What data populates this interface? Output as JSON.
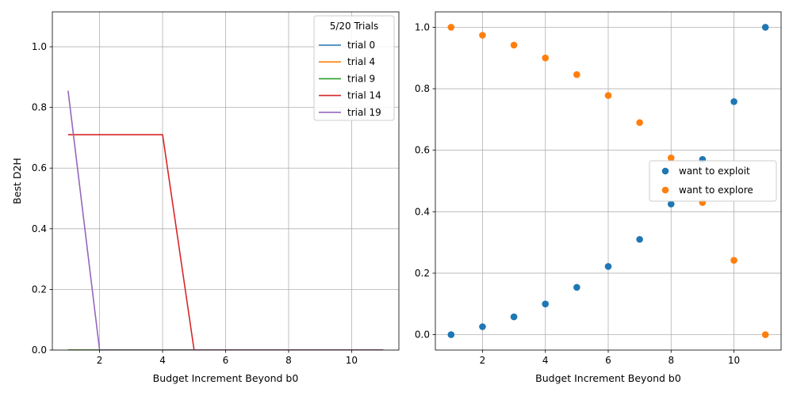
{
  "chart_data": [
    {
      "type": "line",
      "xlabel": "Budget Increment Beyond b0",
      "ylabel": "Best D2H",
      "xlim": [
        0.5,
        11.5
      ],
      "ylim": [
        0,
        1.115
      ],
      "xticks": [
        2,
        4,
        6,
        8,
        10
      ],
      "yticks": [
        0.0,
        0.2,
        0.4,
        0.6,
        0.8,
        1.0
      ],
      "grid": true,
      "legend": {
        "title": "5/20 Trials",
        "placement": "top-right"
      },
      "x": [
        1,
        2,
        3,
        4,
        5,
        6,
        7,
        8,
        9,
        10,
        11
      ],
      "series": [
        {
          "name": "trial 0",
          "color": "#1f77b4",
          "values": [
            0,
            0,
            0,
            0,
            0,
            0,
            0,
            0,
            0,
            0,
            0
          ]
        },
        {
          "name": "trial 4",
          "color": "#ff7f0e",
          "values": [
            0,
            0,
            0,
            0,
            0,
            0,
            0,
            0,
            0,
            0,
            0
          ]
        },
        {
          "name": "trial 9",
          "color": "#2ca02c",
          "values": [
            0,
            0,
            0,
            0,
            0,
            0,
            0,
            0,
            0,
            0,
            0
          ]
        },
        {
          "name": "trial 14",
          "color": "#d62728",
          "values": [
            0.71,
            0.71,
            0.71,
            0.71,
            0,
            0,
            0,
            0,
            0,
            0,
            0
          ]
        },
        {
          "name": "trial 19",
          "color": "#9467bd",
          "values": [
            0.855,
            0,
            0,
            0,
            0,
            0,
            0,
            0,
            0,
            0,
            0
          ]
        }
      ]
    },
    {
      "type": "scatter",
      "xlabel": "Budget Increment Beyond b0",
      "ylabel": "",
      "xlim": [
        0.5,
        11.5
      ],
      "ylim": [
        -0.05,
        1.05
      ],
      "xticks": [
        2,
        4,
        6,
        8,
        10
      ],
      "yticks": [
        0.0,
        0.2,
        0.4,
        0.6,
        0.8,
        1.0
      ],
      "grid": true,
      "legend": {
        "placement": "center-right"
      },
      "x": [
        1,
        2,
        3,
        4,
        5,
        6,
        7,
        8,
        9,
        10,
        11
      ],
      "series": [
        {
          "name": "want to exploit",
          "color": "#1f77b4",
          "values": [
            0,
            0.026,
            0.058,
            0.1,
            0.154,
            0.222,
            0.31,
            0.425,
            0.57,
            0.758,
            1.0
          ]
        },
        {
          "name": "want to explore",
          "color": "#ff7f0e",
          "values": [
            1.0,
            0.974,
            0.942,
            0.9,
            0.846,
            0.778,
            0.69,
            0.575,
            0.43,
            0.242,
            0.0
          ]
        }
      ]
    }
  ]
}
